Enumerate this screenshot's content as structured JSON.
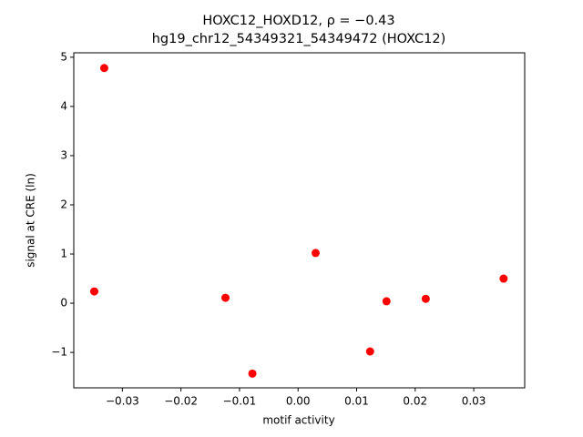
{
  "chart_data": {
    "type": "scatter",
    "title": "HOXC12_HOXD12, ρ = −0.43",
    "subtitle": "hg19_chr12_54349321_54349472 (HOXC12)",
    "x_label": "motif activity",
    "y_label": "signal at CRE (ln)",
    "color": "#ff0000",
    "x": [
      -0.0348,
      -0.0331,
      -0.0124,
      -0.0078,
      0.003,
      0.0123,
      0.0151,
      0.0218,
      0.0351
    ],
    "values": [
      0.24,
      4.78,
      0.11,
      -1.43,
      1.02,
      -0.98,
      0.04,
      0.09,
      0.5
    ],
    "xlim": [
      -0.0383,
      0.0387
    ],
    "ylim": [
      -1.72,
      5.09
    ],
    "xticks": [
      {
        "value": -0.03,
        "label": "−0.03"
      },
      {
        "value": -0.02,
        "label": "−0.02"
      },
      {
        "value": -0.01,
        "label": "−0.01"
      },
      {
        "value": 0,
        "label": "0.00"
      },
      {
        "value": 0.01,
        "label": "0.01"
      },
      {
        "value": 0.02,
        "label": "0.02"
      },
      {
        "value": 0.03,
        "label": "0.03"
      }
    ],
    "yticks": [
      {
        "value": -1,
        "label": "−1"
      },
      0,
      1,
      2,
      3,
      4,
      5
    ],
    "grid": false
  }
}
